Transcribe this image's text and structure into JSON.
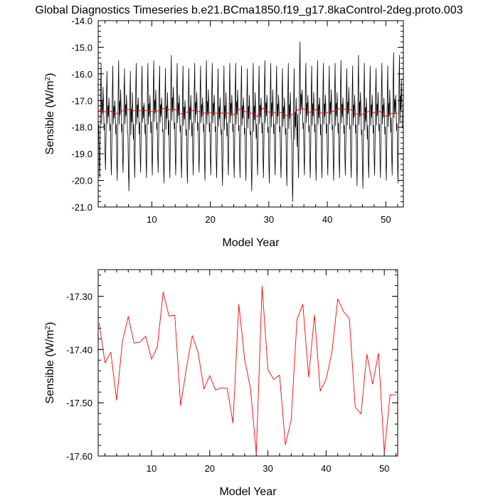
{
  "title": "Global Diagnostics Timeseries b.e21.BCma1850.f19_g17.8kaControl-2deg.proto.003",
  "colors": {
    "monthly": "#000000",
    "annual": "#ff0000",
    "frame": "#000000"
  },
  "chart_data": [
    {
      "type": "line",
      "xlabel": "Model Year",
      "ylabel": "Sensible (W/m",
      "ylabel_sup": "2",
      "ylabel_close": ")",
      "xlim": [
        0.83,
        53.0
      ],
      "ylim": [
        -21.0,
        -14.0
      ],
      "xticks": [
        10,
        20,
        30,
        40,
        50
      ],
      "xtick_labels": [
        "10",
        "20",
        "30",
        "40",
        "50"
      ],
      "yticks": [
        -21.0,
        -20.0,
        -19.0,
        -18.0,
        -17.0,
        -16.0,
        -15.0,
        -14.0
      ],
      "ytick_labels": [
        "-21.0",
        "-20.0",
        "-19.0",
        "-18.0",
        "-17.0",
        "-16.0",
        "-15.0",
        "-14.0"
      ],
      "grid": false,
      "series": [
        {
          "style": "monthly",
          "color": "#000000",
          "x_start": 0.917,
          "x_step": 0.08333,
          "seasonal_min": [
            -19.9,
            -19.6,
            -19.8,
            -20.0,
            -19.7,
            -20.4,
            -19.9,
            -19.7,
            -19.9,
            -19.8,
            -19.7,
            -20.1,
            -19.9,
            -19.8,
            -19.9,
            -20.1,
            -19.8,
            -19.7,
            -20.0,
            -19.8,
            -19.9,
            -20.2,
            -19.8,
            -19.9,
            -19.9,
            -20.0,
            -20.4,
            -19.8,
            -19.9,
            -20.1,
            -19.8,
            -19.9,
            -20.2,
            -20.8,
            -19.9,
            -19.8,
            -19.9,
            -20.0,
            -19.9,
            -19.8,
            -20.0,
            -19.9,
            -19.8,
            -19.9,
            -20.2,
            -20.3,
            -19.9,
            -19.8,
            -19.9,
            -20.0,
            -19.8,
            -20.1
          ],
          "seasonal_max": [
            -15.6,
            -15.9,
            -15.7,
            -15.5,
            -15.8,
            -15.9,
            -15.6,
            -15.7,
            -15.6,
            -15.5,
            -15.7,
            -15.8,
            -15.3,
            -15.6,
            -15.7,
            -15.8,
            -15.6,
            -15.7,
            -15.5,
            -15.6,
            -15.8,
            -15.7,
            -15.6,
            -15.6,
            -15.7,
            -15.8,
            -15.6,
            -15.7,
            -15.5,
            -15.6,
            -15.7,
            -15.8,
            -15.6,
            -15.8,
            -14.8,
            -15.6,
            -15.7,
            -15.5,
            -15.6,
            -15.7,
            -15.6,
            -15.5,
            -15.8,
            -15.7,
            -15.3,
            -15.6,
            -15.7,
            -15.8,
            -15.6,
            -15.7,
            -15.2,
            -15.3
          ],
          "secondary_peak": [
            -16.5,
            -16.9,
            -17.0,
            -16.6,
            -16.8,
            -16.7,
            -16.9,
            -17.1,
            -16.8,
            -16.6,
            -16.9,
            -16.7,
            -16.5,
            -16.8,
            -17.0,
            -16.8,
            -16.7,
            -16.9,
            -16.6,
            -16.8,
            -16.9,
            -16.7,
            -16.8,
            -16.6,
            -16.9,
            -16.8,
            -16.7,
            -16.9,
            -16.8,
            -16.6,
            -16.8,
            -16.9,
            -16.7,
            -16.9,
            -16.6,
            -16.8,
            -16.7,
            -16.9,
            -16.8,
            -16.6,
            -16.7,
            -16.9,
            -16.5,
            -16.8,
            -16.7,
            -16.9,
            -16.8,
            -16.7,
            -16.9,
            -16.6,
            -16.8,
            -16.2
          ]
        },
        {
          "style": "annual",
          "color": "#ff0000",
          "x": [
            1,
            2,
            3,
            4,
            5,
            6,
            7,
            8,
            9,
            10,
            11,
            12,
            13,
            14,
            15,
            16,
            17,
            18,
            19,
            20,
            21,
            22,
            23,
            24,
            25,
            26,
            27,
            28,
            29,
            30,
            31,
            32,
            33,
            34,
            35,
            36,
            37,
            38,
            39,
            40,
            41,
            42,
            43,
            44,
            45,
            46,
            47,
            48,
            49,
            50,
            51,
            52
          ],
          "y": [
            -17.35,
            -17.425,
            -17.405,
            -17.495,
            -17.385,
            -17.338,
            -17.388,
            -17.386,
            -17.375,
            -17.418,
            -17.395,
            -17.292,
            -17.337,
            -17.336,
            -17.505,
            -17.435,
            -17.374,
            -17.405,
            -17.474,
            -17.449,
            -17.476,
            -17.472,
            -17.473,
            -17.538,
            -17.315,
            -17.418,
            -17.473,
            -17.596,
            -17.281,
            -17.438,
            -17.456,
            -17.448,
            -17.579,
            -17.532,
            -17.343,
            -17.315,
            -17.452,
            -17.335,
            -17.478,
            -17.456,
            -17.405,
            -17.305,
            -17.329,
            -17.342,
            -17.508,
            -17.521,
            -17.409,
            -17.465,
            -17.407,
            -17.593,
            -17.485,
            -17.485
          ]
        }
      ]
    },
    {
      "type": "line",
      "xlabel": "Model Year",
      "ylabel": "Sensible (W/m",
      "ylabel_sup": "2",
      "ylabel_close": ")",
      "xlim": [
        0.83,
        52.3
      ],
      "ylim": [
        -17.6,
        -17.25
      ],
      "xticks": [
        10,
        20,
        30,
        40,
        50
      ],
      "xtick_labels": [
        "10",
        "20",
        "30",
        "40",
        "50"
      ],
      "yticks": [
        -17.6,
        -17.5,
        -17.4,
        -17.3
      ],
      "ytick_labels": [
        "-17.60",
        "-17.50",
        "-17.40",
        "-17.30"
      ],
      "grid": false,
      "series": [
        {
          "style": "annual",
          "color": "#ff0000",
          "x": [
            1,
            2,
            3,
            4,
            5,
            6,
            7,
            8,
            9,
            10,
            11,
            12,
            13,
            14,
            15,
            16,
            17,
            18,
            19,
            20,
            21,
            22,
            23,
            24,
            25,
            26,
            27,
            28,
            29,
            30,
            31,
            32,
            33,
            34,
            35,
            36,
            37,
            38,
            39,
            40,
            41,
            42,
            43,
            44,
            45,
            46,
            47,
            48,
            49,
            50,
            51,
            52
          ],
          "y": [
            -17.35,
            -17.425,
            -17.405,
            -17.495,
            -17.385,
            -17.338,
            -17.388,
            -17.386,
            -17.375,
            -17.418,
            -17.395,
            -17.292,
            -17.337,
            -17.336,
            -17.505,
            -17.435,
            -17.374,
            -17.405,
            -17.474,
            -17.449,
            -17.476,
            -17.472,
            -17.473,
            -17.538,
            -17.315,
            -17.418,
            -17.473,
            -17.596,
            -17.281,
            -17.438,
            -17.456,
            -17.448,
            -17.579,
            -17.532,
            -17.343,
            -17.315,
            -17.452,
            -17.335,
            -17.478,
            -17.456,
            -17.405,
            -17.305,
            -17.329,
            -17.342,
            -17.508,
            -17.521,
            -17.409,
            -17.465,
            -17.407,
            -17.593,
            -17.485,
            -17.485
          ]
        }
      ]
    }
  ]
}
